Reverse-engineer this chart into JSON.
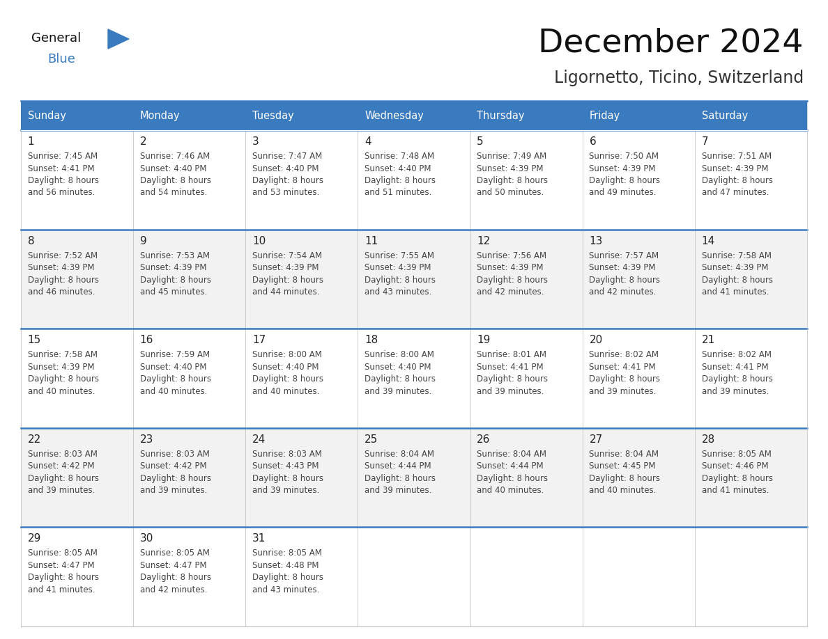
{
  "title": "December 2024",
  "subtitle": "Ligornetto, Ticino, Switzerland",
  "header_color": "#3a7abf",
  "header_text_color": "#ffffff",
  "cell_border_color": "#bbbbbb",
  "row_border_color": "#3a7abf",
  "day_number_color": "#222222",
  "day_text_color": "#444444",
  "bg_color_even": "#ffffff",
  "bg_color_odd": "#f2f2f2",
  "days_of_week": [
    "Sunday",
    "Monday",
    "Tuesday",
    "Wednesday",
    "Thursday",
    "Friday",
    "Saturday"
  ],
  "weeks": [
    [
      {
        "day": "1",
        "sunrise": "7:45 AM",
        "sunset": "4:41 PM",
        "daylight_extra": "56 minutes."
      },
      {
        "day": "2",
        "sunrise": "7:46 AM",
        "sunset": "4:40 PM",
        "daylight_extra": "54 minutes."
      },
      {
        "day": "3",
        "sunrise": "7:47 AM",
        "sunset": "4:40 PM",
        "daylight_extra": "53 minutes."
      },
      {
        "day": "4",
        "sunrise": "7:48 AM",
        "sunset": "4:40 PM",
        "daylight_extra": "51 minutes."
      },
      {
        "day": "5",
        "sunrise": "7:49 AM",
        "sunset": "4:39 PM",
        "daylight_extra": "50 minutes."
      },
      {
        "day": "6",
        "sunrise": "7:50 AM",
        "sunset": "4:39 PM",
        "daylight_extra": "49 minutes."
      },
      {
        "day": "7",
        "sunrise": "7:51 AM",
        "sunset": "4:39 PM",
        "daylight_extra": "47 minutes."
      }
    ],
    [
      {
        "day": "8",
        "sunrise": "7:52 AM",
        "sunset": "4:39 PM",
        "daylight_extra": "46 minutes."
      },
      {
        "day": "9",
        "sunrise": "7:53 AM",
        "sunset": "4:39 PM",
        "daylight_extra": "45 minutes."
      },
      {
        "day": "10",
        "sunrise": "7:54 AM",
        "sunset": "4:39 PM",
        "daylight_extra": "44 minutes."
      },
      {
        "day": "11",
        "sunrise": "7:55 AM",
        "sunset": "4:39 PM",
        "daylight_extra": "43 minutes."
      },
      {
        "day": "12",
        "sunrise": "7:56 AM",
        "sunset": "4:39 PM",
        "daylight_extra": "42 minutes."
      },
      {
        "day": "13",
        "sunrise": "7:57 AM",
        "sunset": "4:39 PM",
        "daylight_extra": "42 minutes."
      },
      {
        "day": "14",
        "sunrise": "7:58 AM",
        "sunset": "4:39 PM",
        "daylight_extra": "41 minutes."
      }
    ],
    [
      {
        "day": "15",
        "sunrise": "7:58 AM",
        "sunset": "4:39 PM",
        "daylight_extra": "40 minutes."
      },
      {
        "day": "16",
        "sunrise": "7:59 AM",
        "sunset": "4:40 PM",
        "daylight_extra": "40 minutes."
      },
      {
        "day": "17",
        "sunrise": "8:00 AM",
        "sunset": "4:40 PM",
        "daylight_extra": "40 minutes."
      },
      {
        "day": "18",
        "sunrise": "8:00 AM",
        "sunset": "4:40 PM",
        "daylight_extra": "39 minutes."
      },
      {
        "day": "19",
        "sunrise": "8:01 AM",
        "sunset": "4:41 PM",
        "daylight_extra": "39 minutes."
      },
      {
        "day": "20",
        "sunrise": "8:02 AM",
        "sunset": "4:41 PM",
        "daylight_extra": "39 minutes."
      },
      {
        "day": "21",
        "sunrise": "8:02 AM",
        "sunset": "4:41 PM",
        "daylight_extra": "39 minutes."
      }
    ],
    [
      {
        "day": "22",
        "sunrise": "8:03 AM",
        "sunset": "4:42 PM",
        "daylight_extra": "39 minutes."
      },
      {
        "day": "23",
        "sunrise": "8:03 AM",
        "sunset": "4:42 PM",
        "daylight_extra": "39 minutes."
      },
      {
        "day": "24",
        "sunrise": "8:03 AM",
        "sunset": "4:43 PM",
        "daylight_extra": "39 minutes."
      },
      {
        "day": "25",
        "sunrise": "8:04 AM",
        "sunset": "4:44 PM",
        "daylight_extra": "39 minutes."
      },
      {
        "day": "26",
        "sunrise": "8:04 AM",
        "sunset": "4:44 PM",
        "daylight_extra": "40 minutes."
      },
      {
        "day": "27",
        "sunrise": "8:04 AM",
        "sunset": "4:45 PM",
        "daylight_extra": "40 minutes."
      },
      {
        "day": "28",
        "sunrise": "8:05 AM",
        "sunset": "4:46 PM",
        "daylight_extra": "41 minutes."
      }
    ],
    [
      {
        "day": "29",
        "sunrise": "8:05 AM",
        "sunset": "4:47 PM",
        "daylight_extra": "41 minutes."
      },
      {
        "day": "30",
        "sunrise": "8:05 AM",
        "sunset": "4:47 PM",
        "daylight_extra": "42 minutes."
      },
      {
        "day": "31",
        "sunrise": "8:05 AM",
        "sunset": "4:48 PM",
        "daylight_extra": "43 minutes."
      },
      null,
      null,
      null,
      null
    ]
  ]
}
